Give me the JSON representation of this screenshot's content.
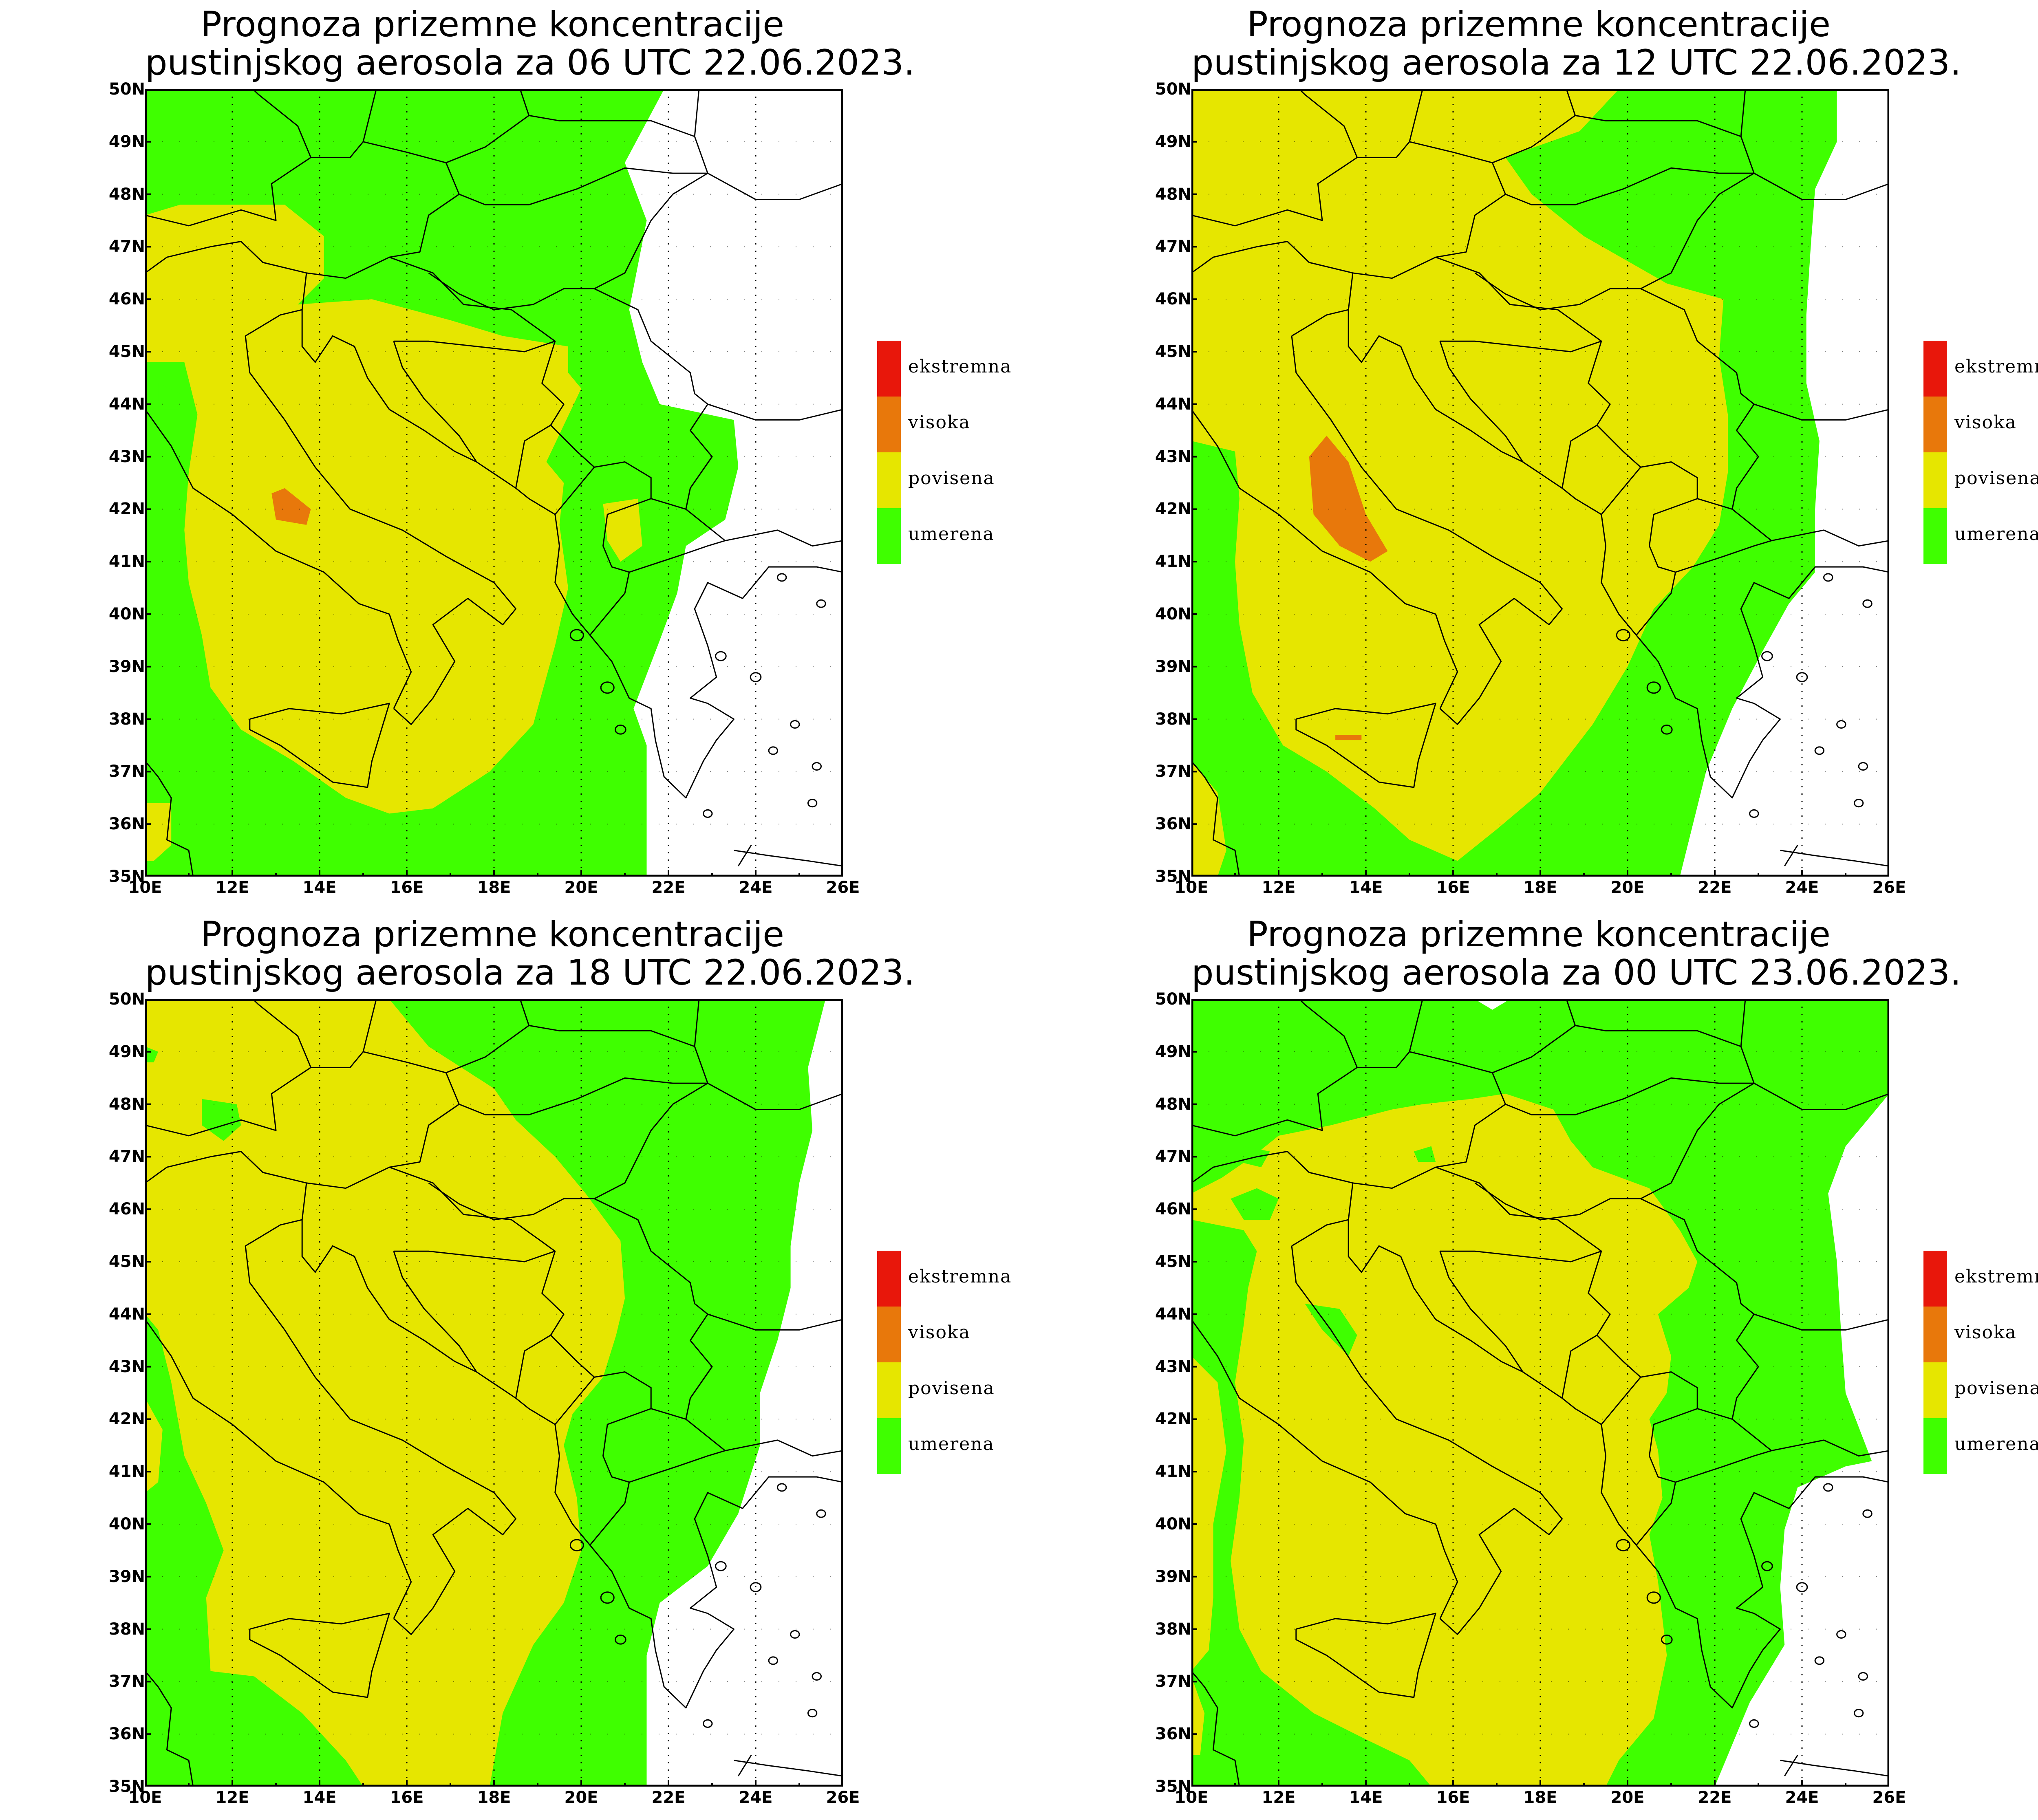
{
  "figure": {
    "panels": [
      {
        "title_line1": "Prognoza prizemne koncentracije",
        "title_line2": "pustinjskog aerosola za 06 UTC 22.06.2023."
      },
      {
        "title_line1": "Prognoza prizemne koncentracije",
        "title_line2": "pustinjskog aerosola za 12 UTC 22.06.2023."
      },
      {
        "title_line1": "Prognoza prizemne koncentracije",
        "title_line2": "pustinjskog aerosola za 18 UTC 22.06.2023."
      },
      {
        "title_line1": "Prognoza prizemne koncentracije",
        "title_line2": "pustinjskog aerosola za 00 UTC 23.06.2023."
      }
    ],
    "axes": {
      "lat_labels": [
        "50N",
        "49N",
        "48N",
        "47N",
        "46N",
        "45N",
        "44N",
        "43N",
        "42N",
        "41N",
        "40N",
        "39N",
        "38N",
        "37N",
        "36N",
        "35N"
      ],
      "lon_labels": [
        "10E",
        "12E",
        "14E",
        "16E",
        "18E",
        "20E",
        "22E",
        "24E",
        "26E"
      ],
      "lat_range": [
        35,
        50
      ],
      "lon_range": [
        10,
        26
      ],
      "grid": "dotted meridians every 2° from 12E to 24E; dotted parallels every 1°"
    },
    "legend": {
      "items": [
        {
          "label": "ekstremna",
          "color": "#e8170b"
        },
        {
          "label": "visoka",
          "color": "#e8780b"
        },
        {
          "label": "povisena",
          "color": "#e6e600"
        },
        {
          "label": "umerena",
          "color": "#3fff00"
        }
      ]
    },
    "colors": {
      "background_no_data": "#ffffff",
      "umerena": "#3fff00",
      "povisena": "#e6e600",
      "visoka": "#e8780b",
      "ekstremna": "#e8170b",
      "borders_coastlines": "#000000"
    }
  }
}
